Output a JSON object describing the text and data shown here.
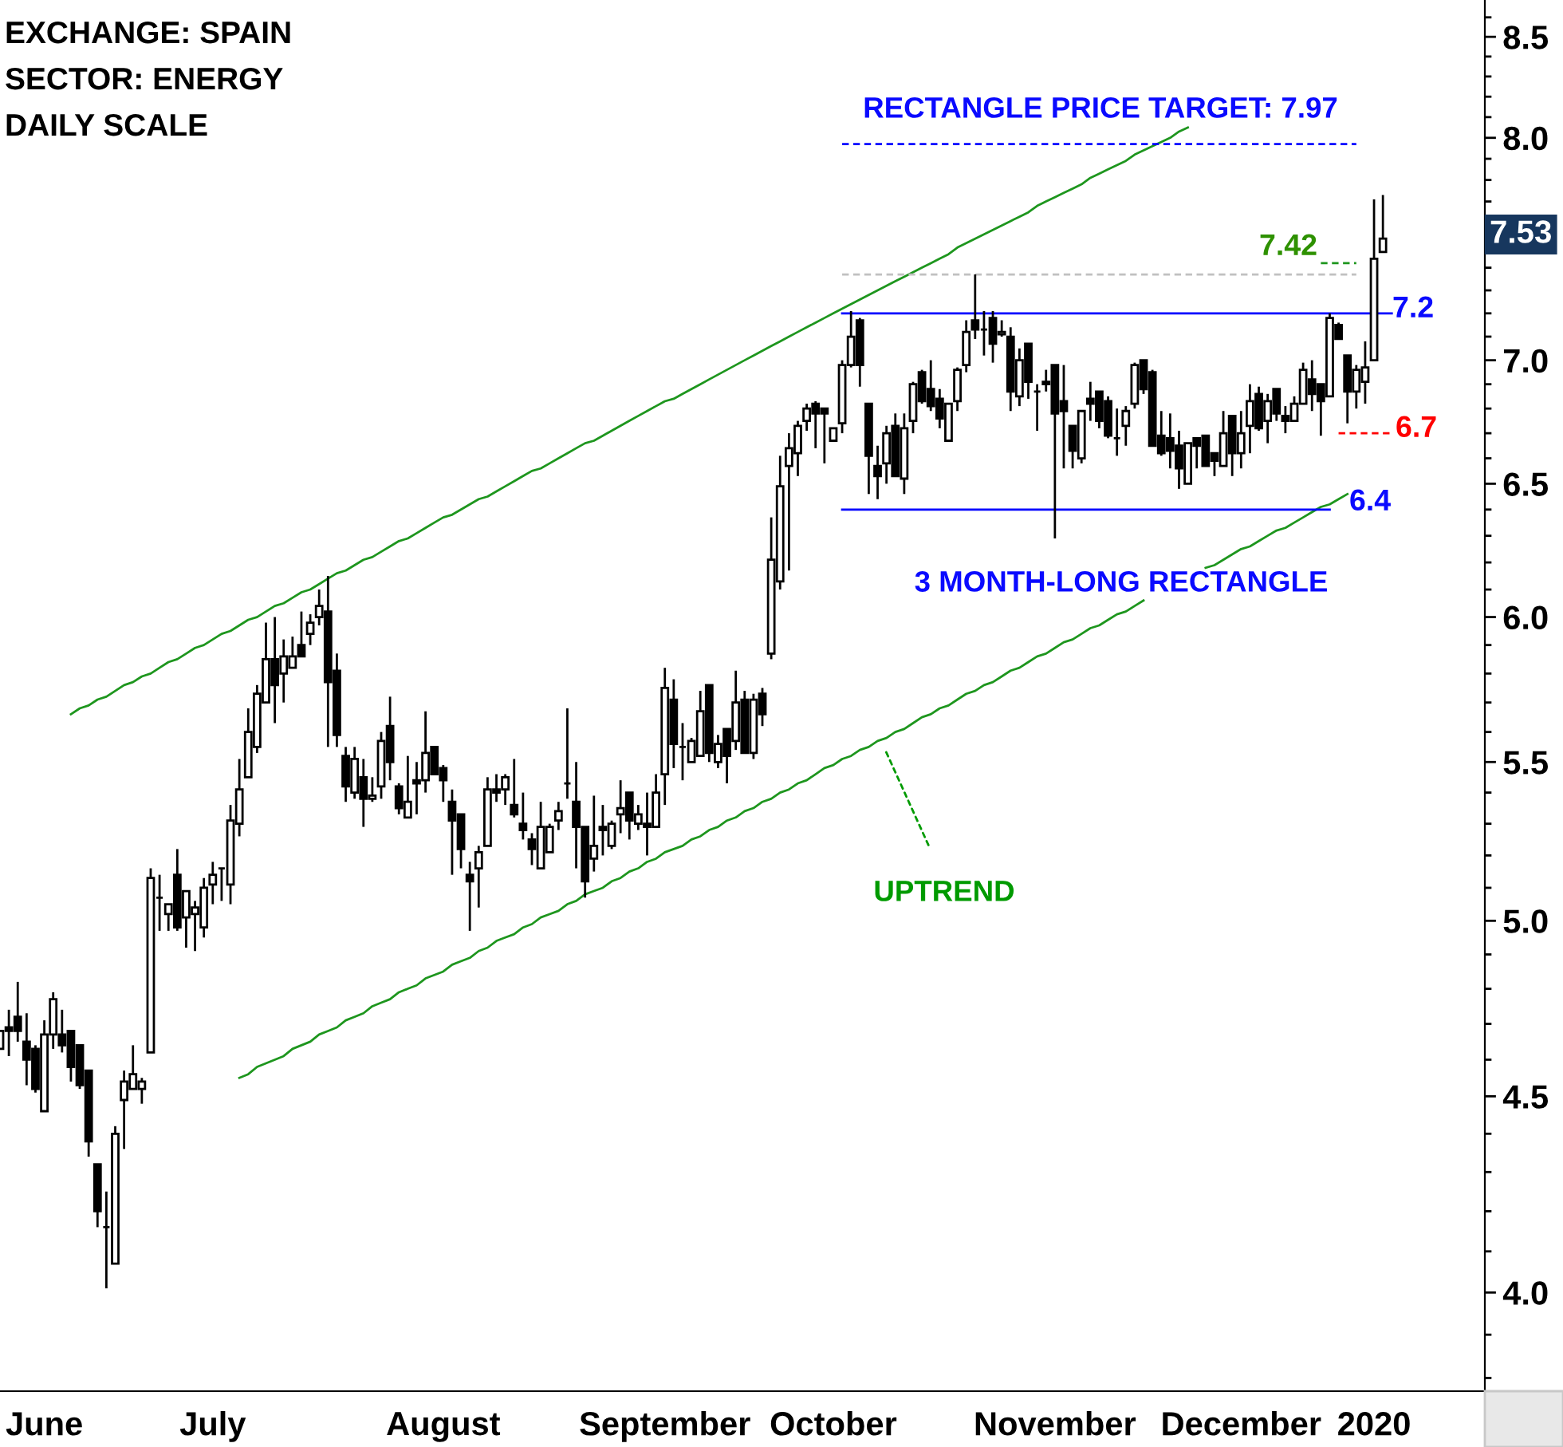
{
  "chart_data": {
    "type": "candlestick",
    "categories": [
      null,
      null,
      null,
      null,
      null,
      "June",
      null,
      null,
      null,
      null,
      null,
      null,
      null,
      null,
      null,
      null,
      null,
      null,
      null,
      null,
      null,
      null,
      null,
      null,
      "July",
      null,
      null,
      null,
      null,
      null,
      null,
      null,
      null,
      null,
      null,
      null,
      null,
      null,
      null,
      null,
      null,
      null,
      null,
      null,
      null,
      null,
      null,
      null,
      null,
      null,
      "August",
      null,
      null,
      null,
      null,
      null,
      null,
      null,
      null,
      null,
      null,
      null,
      null,
      null,
      null,
      null,
      null,
      null,
      null,
      null,
      null,
      null,
      null,
      null,
      null,
      "September",
      null,
      null,
      null,
      null,
      null,
      null,
      null,
      null,
      null,
      null,
      null,
      null,
      null,
      null,
      null,
      null,
      null,
      null,
      "October",
      null,
      null,
      null,
      null,
      null,
      null,
      null,
      null,
      null,
      null,
      null,
      null,
      null,
      null,
      null,
      null,
      null,
      null,
      null,
      null,
      null,
      null,
      null,
      null,
      "November",
      null,
      null,
      null,
      null,
      null,
      null,
      null,
      null,
      null,
      null,
      null,
      null,
      null,
      null,
      null,
      null,
      null,
      null,
      null,
      null,
      "December",
      null,
      null,
      null,
      null,
      null,
      null,
      null,
      null,
      null,
      null,
      null,
      null,
      null,
      null,
      "2020",
      null,
      null,
      null,
      null,
      null,
      null,
      null,
      null,
      null,
      null,
      null,
      null
    ],
    "ohlc": [
      [
        4.63,
        4.68,
        4.63,
        4.68
      ],
      [
        4.69,
        4.74,
        4.61,
        4.68
      ],
      [
        4.72,
        4.82,
        4.65,
        4.68
      ],
      [
        4.65,
        4.73,
        4.53,
        4.6
      ],
      [
        4.63,
        4.64,
        4.51,
        4.52
      ],
      [
        4.46,
        4.71,
        4.46,
        4.67
      ],
      [
        4.67,
        4.79,
        4.63,
        4.77
      ],
      [
        4.67,
        4.74,
        4.62,
        4.64
      ],
      [
        4.68,
        4.68,
        4.54,
        4.58
      ],
      [
        4.64,
        4.64,
        4.52,
        4.53
      ],
      [
        4.57,
        4.57,
        4.34,
        4.38
      ],
      [
        4.32,
        4.32,
        4.16,
        4.2
      ],
      [
        4.16,
        4.25,
        4.01,
        4.16
      ],
      [
        4.07,
        4.42,
        4.07,
        4.4
      ],
      [
        4.49,
        4.57,
        4.36,
        4.54
      ],
      [
        4.52,
        4.64,
        4.52,
        4.56
      ],
      [
        4.52,
        4.55,
        4.48,
        4.54
      ],
      [
        4.62,
        5.16,
        4.62,
        5.13
      ],
      [
        5.07,
        5.14,
        4.97,
        5.07
      ],
      [
        5.02,
        5.05,
        4.97,
        5.05
      ],
      [
        5.14,
        5.22,
        4.97,
        4.98
      ],
      [
        5.01,
        5.09,
        4.92,
        5.09
      ],
      [
        5.02,
        5.06,
        4.91,
        5.04
      ],
      [
        4.98,
        5.13,
        4.95,
        5.1
      ],
      [
        5.11,
        5.18,
        5.05,
        5.14
      ],
      [
        5.16,
        5.16,
        5.06,
        5.16
      ],
      [
        5.11,
        5.36,
        5.05,
        5.31
      ],
      [
        5.3,
        5.51,
        5.26,
        5.41
      ],
      [
        5.45,
        5.68,
        5.45,
        5.6
      ],
      [
        5.55,
        5.76,
        5.53,
        5.73
      ],
      [
        5.7,
        5.98,
        5.7,
        5.85
      ],
      [
        5.85,
        6.0,
        5.63,
        5.76
      ],
      [
        5.8,
        5.92,
        5.7,
        5.86
      ],
      [
        5.82,
        5.93,
        5.82,
        5.86
      ],
      [
        5.9,
        6.02,
        5.86,
        5.86
      ],
      [
        5.94,
        6.01,
        5.9,
        5.98
      ],
      [
        6.0,
        6.1,
        5.97,
        6.04
      ],
      [
        6.02,
        6.15,
        5.55,
        5.77
      ],
      [
        5.81,
        5.87,
        5.55,
        5.59
      ],
      [
        5.52,
        5.55,
        5.37,
        5.42
      ],
      [
        5.4,
        5.55,
        5.38,
        5.51
      ],
      [
        5.45,
        5.51,
        5.29,
        5.38
      ],
      [
        5.38,
        5.45,
        5.37,
        5.39
      ],
      [
        5.42,
        5.6,
        5.38,
        5.57
      ],
      [
        5.62,
        5.72,
        5.44,
        5.5
      ],
      [
        5.42,
        5.43,
        5.33,
        5.35
      ],
      [
        5.32,
        5.52,
        5.32,
        5.37
      ],
      [
        5.44,
        5.5,
        5.33,
        5.43
      ],
      [
        5.44,
        5.67,
        5.4,
        5.53
      ],
      [
        5.55,
        5.55,
        5.46,
        5.46
      ],
      [
        5.48,
        5.49,
        5.37,
        5.44
      ],
      [
        5.37,
        5.41,
        5.14,
        5.31
      ],
      [
        5.33,
        5.33,
        5.16,
        5.22
      ],
      [
        5.14,
        5.18,
        4.97,
        5.12
      ],
      [
        5.16,
        5.23,
        5.04,
        5.21
      ],
      [
        5.23,
        5.45,
        5.23,
        5.41
      ],
      [
        5.41,
        5.46,
        5.37,
        5.4
      ],
      [
        5.41,
        5.46,
        5.36,
        5.45
      ],
      [
        5.36,
        5.51,
        5.32,
        5.33
      ],
      [
        5.3,
        5.4,
        5.25,
        5.28
      ],
      [
        5.25,
        5.27,
        5.17,
        5.22
      ],
      [
        5.16,
        5.37,
        5.16,
        5.29
      ],
      [
        5.21,
        5.3,
        5.21,
        5.29
      ],
      [
        5.31,
        5.37,
        5.28,
        5.34
      ],
      [
        5.43,
        5.68,
        5.38,
        5.43
      ],
      [
        5.37,
        5.5,
        5.16,
        5.29
      ],
      [
        5.29,
        5.29,
        5.07,
        5.12
      ],
      [
        5.19,
        5.39,
        5.15,
        5.23
      ],
      [
        5.29,
        5.36,
        5.2,
        5.28
      ],
      [
        5.23,
        5.31,
        5.22,
        5.3
      ],
      [
        5.33,
        5.44,
        5.27,
        5.35
      ],
      [
        5.4,
        5.4,
        5.25,
        5.31
      ],
      [
        5.3,
        5.36,
        5.28,
        5.33
      ],
      [
        5.3,
        5.4,
        5.2,
        5.29
      ],
      [
        5.29,
        5.46,
        5.29,
        5.4
      ],
      [
        5.46,
        5.82,
        5.36,
        5.75
      ],
      [
        5.71,
        5.78,
        5.48,
        5.56
      ],
      [
        5.55,
        5.63,
        5.44,
        5.55
      ],
      [
        5.5,
        5.58,
        5.5,
        5.57
      ],
      [
        5.52,
        5.74,
        5.52,
        5.67
      ],
      [
        5.76,
        5.76,
        5.5,
        5.53
      ],
      [
        5.5,
        5.59,
        5.48,
        5.56
      ],
      [
        5.61,
        5.61,
        5.43,
        5.52
      ],
      [
        5.57,
        5.81,
        5.54,
        5.7
      ],
      [
        5.71,
        5.74,
        5.53,
        5.53
      ],
      [
        5.53,
        5.73,
        5.51,
        5.71
      ],
      [
        5.73,
        5.75,
        5.62,
        5.66
      ],
      [
        5.87,
        6.37,
        5.85,
        6.21
      ],
      [
        6.13,
        6.61,
        6.1,
        6.49
      ],
      [
        6.57,
        6.7,
        6.17,
        6.64
      ],
      [
        6.62,
        6.75,
        6.53,
        6.73
      ],
      [
        6.75,
        6.82,
        6.71,
        6.8
      ],
      [
        6.82,
        6.83,
        6.64,
        6.78
      ],
      [
        6.8,
        6.8,
        6.58,
        6.78
      ],
      [
        6.67,
        6.72,
        6.67,
        6.72
      ],
      [
        6.74,
        7.0,
        6.7,
        6.98
      ],
      [
        6.98,
        7.21,
        6.97,
        7.1
      ],
      [
        7.17,
        7.18,
        6.89,
        6.98
      ],
      [
        6.82,
        6.82,
        6.46,
        6.61
      ],
      [
        6.57,
        6.65,
        6.44,
        6.53
      ],
      [
        6.58,
        6.73,
        6.5,
        6.7
      ],
      [
        6.73,
        6.78,
        6.53,
        6.53
      ],
      [
        6.52,
        6.78,
        6.46,
        6.72
      ],
      [
        6.75,
        6.91,
        6.7,
        6.9
      ],
      [
        6.95,
        6.96,
        6.82,
        6.83
      ],
      [
        6.88,
        7.0,
        6.79,
        6.81
      ],
      [
        6.84,
        6.88,
        6.72,
        6.76
      ],
      [
        6.67,
        6.82,
        6.67,
        6.82
      ],
      [
        6.83,
        6.97,
        6.79,
        6.96
      ],
      [
        6.98,
        7.17,
        6.95,
        7.12
      ],
      [
        7.17,
        7.37,
        7.09,
        7.13
      ],
      [
        7.13,
        7.21,
        7.02,
        7.13
      ],
      [
        7.18,
        7.21,
        6.99,
        7.07
      ],
      [
        7.11,
        7.17,
        7.1,
        7.12
      ],
      [
        7.1,
        7.14,
        6.79,
        6.87
      ],
      [
        6.85,
        7.05,
        6.81,
        7.0
      ],
      [
        7.07,
        7.07,
        6.84,
        6.91
      ],
      [
        6.87,
        6.9,
        6.71,
        6.87
      ],
      [
        6.91,
        6.96,
        6.87,
        6.9
      ],
      [
        6.98,
        6.98,
        6.29,
        6.78
      ],
      [
        6.83,
        6.98,
        6.56,
        6.79
      ],
      [
        6.73,
        6.73,
        6.56,
        6.63
      ],
      [
        6.6,
        6.79,
        6.58,
        6.79
      ],
      [
        6.84,
        6.91,
        6.75,
        6.82
      ],
      [
        6.87,
        6.87,
        6.72,
        6.75
      ],
      [
        6.83,
        6.85,
        6.68,
        6.69
      ],
      [
        6.68,
        6.8,
        6.61,
        6.68
      ],
      [
        6.73,
        6.81,
        6.65,
        6.79
      ],
      [
        6.82,
        6.99,
        6.8,
        6.98
      ],
      [
        7.0,
        7.0,
        6.86,
        6.88
      ],
      [
        6.95,
        6.96,
        6.65,
        6.65
      ],
      [
        6.69,
        6.79,
        6.61,
        6.62
      ],
      [
        6.68,
        6.78,
        6.56,
        6.63
      ],
      [
        6.65,
        6.71,
        6.48,
        6.56
      ],
      [
        6.5,
        6.66,
        6.5,
        6.66
      ],
      [
        6.68,
        6.68,
        6.56,
        6.65
      ],
      [
        6.69,
        6.69,
        6.57,
        6.57
      ],
      [
        6.62,
        6.62,
        6.53,
        6.59
      ],
      [
        6.57,
        6.79,
        6.57,
        6.7
      ],
      [
        6.77,
        6.77,
        6.53,
        6.62
      ],
      [
        6.62,
        6.79,
        6.56,
        6.7
      ],
      [
        6.73,
        6.9,
        6.62,
        6.83
      ],
      [
        6.86,
        6.89,
        6.71,
        6.72
      ],
      [
        6.75,
        6.86,
        6.66,
        6.83
      ],
      [
        6.88,
        6.88,
        6.75,
        6.78
      ],
      [
        6.77,
        6.81,
        6.7,
        6.75
      ],
      [
        6.75,
        6.85,
        6.75,
        6.82
      ],
      [
        6.82,
        6.99,
        6.82,
        6.96
      ],
      [
        6.92,
        7.0,
        6.79,
        6.86
      ],
      [
        6.9,
        6.9,
        6.69,
        6.83
      ],
      [
        6.85,
        7.2,
        6.85,
        7.18
      ],
      [
        7.15,
        7.16,
        7.09,
        7.09
      ],
      [
        7.02,
        7.02,
        6.74,
        6.87
      ],
      [
        6.87,
        6.98,
        6.8,
        6.96
      ],
      [
        6.91,
        7.08,
        6.82,
        6.97
      ],
      [
        7.0,
        7.71,
        7.0,
        7.44
      ],
      [
        7.47,
        7.73,
        7.47,
        7.53
      ],
      null,
      null,
      null,
      null,
      null,
      null,
      null,
      null,
      null,
      null,
      null
    ],
    "series": [
      {
        "type": "line",
        "color": "#1e961e",
        "values": [
          null,
          null,
          null,
          null,
          null,
          null,
          null,
          null,
          5.66,
          5.68,
          5.69,
          5.71,
          5.72,
          5.74,
          5.76,
          5.77,
          5.79,
          5.8,
          5.82,
          5.84,
          5.85,
          5.87,
          5.89,
          5.9,
          5.92,
          5.94,
          5.95,
          5.97,
          5.99,
          6.0,
          6.02,
          6.04,
          6.05,
          6.07,
          6.09,
          6.1,
          6.12,
          6.14,
          6.16,
          6.17,
          6.19,
          6.21,
          6.22,
          6.24,
          6.26,
          6.28,
          6.29,
          6.31,
          6.33,
          6.35,
          6.37,
          6.38,
          6.4,
          6.42,
          6.44,
          6.45,
          6.47,
          6.49,
          6.51,
          6.53,
          6.55,
          6.56,
          6.58,
          6.6,
          6.62,
          6.64,
          6.66,
          6.67,
          6.69,
          6.71,
          6.73,
          6.75,
          6.77,
          6.79,
          6.81,
          6.83,
          6.84,
          6.86,
          6.88,
          6.9,
          6.92,
          6.94,
          6.96,
          6.98,
          7.0,
          7.02,
          7.04,
          7.06,
          7.08,
          7.1,
          7.12,
          7.14,
          7.16,
          7.18,
          7.2,
          7.22,
          7.24,
          7.26,
          7.28,
          7.3,
          7.32,
          7.34,
          7.36,
          7.38,
          7.4,
          7.42,
          7.44,
          7.46,
          7.49,
          7.51,
          7.53,
          7.55,
          7.57,
          7.59,
          7.61,
          7.63,
          7.65,
          7.68,
          7.7,
          7.72,
          7.74,
          7.76,
          7.78,
          7.81,
          7.83,
          7.85,
          7.87,
          7.89,
          7.92,
          7.94,
          7.96,
          7.98,
          8.0,
          8.03,
          8.05,
          null,
          null,
          null,
          null,
          null,
          null,
          null,
          null,
          null,
          null,
          null,
          null,
          null,
          null,
          null,
          null,
          null,
          null,
          null,
          null,
          null,
          null,
          null,
          null,
          null,
          null,
          null,
          null,
          null,
          null,
          null,
          null,
          null
        ]
      },
      {
        "type": "line",
        "color": "#1e961e",
        "values": [
          null,
          null,
          null,
          null,
          null,
          null,
          null,
          null,
          null,
          null,
          null,
          null,
          null,
          null,
          null,
          null,
          null,
          null,
          null,
          null,
          null,
          null,
          null,
          null,
          null,
          null,
          null,
          4.55,
          4.56,
          4.58,
          4.59,
          4.6,
          4.61,
          4.63,
          4.64,
          4.65,
          4.67,
          4.68,
          4.69,
          4.71,
          4.72,
          4.73,
          4.75,
          4.76,
          4.77,
          4.79,
          4.8,
          4.81,
          4.83,
          4.84,
          4.85,
          4.87,
          4.88,
          4.89,
          4.91,
          4.92,
          4.94,
          4.95,
          4.96,
          4.98,
          4.99,
          5.01,
          5.02,
          5.03,
          5.05,
          5.06,
          5.08,
          5.09,
          5.1,
          5.12,
          5.13,
          5.15,
          5.16,
          5.18,
          5.19,
          5.21,
          5.22,
          5.23,
          5.25,
          5.26,
          5.28,
          5.29,
          5.31,
          5.32,
          5.34,
          5.35,
          5.37,
          5.38,
          5.4,
          5.41,
          5.43,
          5.44,
          5.46,
          5.48,
          5.49,
          5.51,
          5.52,
          5.54,
          5.55,
          5.57,
          5.58,
          5.6,
          5.61,
          5.63,
          5.65,
          5.66,
          5.68,
          5.69,
          5.71,
          5.73,
          5.74,
          5.76,
          5.77,
          5.79,
          5.81,
          5.82,
          5.84,
          5.86,
          5.87,
          5.89,
          5.91,
          5.92,
          5.94,
          5.96,
          5.97,
          5.99,
          6.01,
          6.02,
          6.04,
          6.06,
          null,
          null,
          null,
          null,
          null,
          null,
          6.18,
          6.19,
          6.21,
          6.23,
          6.25,
          6.26,
          6.28,
          6.3,
          6.32,
          6.33,
          6.35,
          6.37,
          6.39,
          6.41,
          6.42,
          6.44,
          6.46,
          null,
          null,
          null,
          null,
          null,
          null,
          null,
          null,
          null,
          null,
          null,
          null,
          null,
          null,
          null
        ]
      },
      {
        "type": "line",
        "color": "#0000ff",
        "values": [
          null,
          null,
          null,
          null,
          null,
          null,
          null,
          null,
          null,
          null,
          null,
          null,
          null,
          null,
          null,
          null,
          null,
          null,
          null,
          null,
          null,
          null,
          null,
          null,
          null,
          null,
          null,
          null,
          null,
          null,
          null,
          null,
          null,
          null,
          null,
          null,
          null,
          null,
          null,
          null,
          null,
          null,
          null,
          null,
          null,
          null,
          null,
          null,
          null,
          null,
          null,
          null,
          null,
          null,
          null,
          null,
          null,
          null,
          null,
          null,
          null,
          null,
          null,
          null,
          null,
          null,
          null,
          null,
          null,
          null,
          null,
          null,
          null,
          null,
          null,
          null,
          null,
          null,
          null,
          null,
          null,
          null,
          null,
          null,
          null,
          null,
          null,
          null,
          null,
          null,
          null,
          null,
          null,
          null,
          null,
          7.2,
          7.2,
          7.2,
          7.2,
          7.2,
          7.2,
          7.2,
          7.2,
          7.2,
          7.2,
          7.2,
          7.2,
          7.2,
          7.2,
          7.2,
          7.2,
          7.2,
          7.2,
          7.2,
          7.2,
          7.2,
          7.2,
          7.2,
          7.2,
          7.2,
          7.2,
          7.2,
          7.2,
          7.2,
          7.2,
          7.2,
          7.2,
          7.2,
          7.2,
          7.2,
          7.2,
          7.2,
          7.2,
          7.2,
          7.2,
          7.2,
          7.2,
          7.2,
          7.2,
          7.2,
          7.2,
          7.2,
          7.2,
          7.2,
          7.2,
          7.2,
          7.2,
          7.2,
          7.2,
          7.2,
          7.2,
          7.2,
          7.2,
          7.2,
          7.2,
          7.2,
          7.2,
          7.2,
          null,
          null,
          null,
          null,
          null,
          null,
          null,
          null,
          null,
          null
        ]
      },
      {
        "type": "line",
        "color": "#0000ff",
        "values": [
          null,
          null,
          null,
          null,
          null,
          null,
          null,
          null,
          null,
          null,
          null,
          null,
          null,
          null,
          null,
          null,
          null,
          null,
          null,
          null,
          null,
          null,
          null,
          null,
          null,
          null,
          null,
          null,
          null,
          null,
          null,
          null,
          null,
          null,
          null,
          null,
          null,
          null,
          null,
          null,
          null,
          null,
          null,
          null,
          null,
          null,
          null,
          null,
          null,
          null,
          null,
          null,
          null,
          null,
          null,
          null,
          null,
          null,
          null,
          null,
          null,
          null,
          null,
          null,
          null,
          null,
          null,
          null,
          null,
          null,
          null,
          null,
          null,
          null,
          null,
          null,
          null,
          null,
          null,
          null,
          null,
          null,
          null,
          null,
          null,
          null,
          null,
          null,
          null,
          null,
          null,
          null,
          null,
          null,
          null,
          6.4,
          6.4,
          6.4,
          6.4,
          6.4,
          6.4,
          6.4,
          6.4,
          6.4,
          6.4,
          6.4,
          6.4,
          6.4,
          6.4,
          6.4,
          6.4,
          6.4,
          6.4,
          6.4,
          6.4,
          6.4,
          6.4,
          6.4,
          6.4,
          6.4,
          6.4,
          6.4,
          6.4,
          6.4,
          6.4,
          6.4,
          6.4,
          6.4,
          6.4,
          6.4,
          6.4,
          6.4,
          6.4,
          6.4,
          6.4,
          6.4,
          6.4,
          6.4,
          6.4,
          6.4,
          6.4,
          6.4,
          6.4,
          6.4,
          6.4,
          6.4,
          6.4,
          6.4,
          6.4,
          6.4,
          6.4,
          null,
          null,
          null,
          null,
          null,
          null,
          null,
          null,
          null,
          null,
          null,
          null,
          null,
          null,
          null,
          null,
          null
        ]
      },
      {
        "type": "line",
        "color": "#c0c0c0",
        "line_style": "dashed",
        "values": [
          null,
          null,
          null,
          null,
          null,
          null,
          null,
          null,
          null,
          null,
          null,
          null,
          null,
          null,
          null,
          null,
          null,
          null,
          null,
          null,
          null,
          null,
          null,
          null,
          null,
          null,
          null,
          null,
          null,
          null,
          null,
          null,
          null,
          null,
          null,
          null,
          null,
          null,
          null,
          null,
          null,
          null,
          null,
          null,
          null,
          null,
          null,
          null,
          null,
          null,
          null,
          null,
          null,
          null,
          null,
          null,
          null,
          null,
          null,
          null,
          null,
          null,
          null,
          null,
          null,
          null,
          null,
          null,
          null,
          null,
          null,
          null,
          null,
          null,
          null,
          null,
          null,
          null,
          null,
          null,
          null,
          null,
          null,
          null,
          null,
          null,
          null,
          null,
          null,
          null,
          null,
          null,
          null,
          null,
          null,
          7.37,
          7.37,
          7.37,
          7.37,
          7.37,
          7.37,
          7.37,
          7.37,
          7.37,
          7.37,
          7.37,
          7.37,
          7.37,
          7.37,
          7.37,
          7.37,
          7.37,
          7.37,
          7.37,
          7.37,
          7.37,
          7.37,
          7.37,
          7.37,
          7.37,
          7.37,
          7.37,
          7.37,
          7.37,
          7.37,
          7.37,
          7.37,
          7.37,
          7.37,
          7.37,
          7.37,
          7.37,
          7.37,
          7.37,
          7.37,
          7.37,
          7.37,
          7.37,
          7.37,
          7.37,
          7.37,
          7.37,
          7.37,
          7.37,
          7.37,
          7.37,
          7.37,
          7.37,
          7.37,
          7.37,
          7.37,
          7.37,
          7.37,
          7.37,
          null,
          null,
          null,
          null,
          null,
          null,
          null,
          null,
          null,
          null,
          null,
          null,
          null,
          null
        ]
      },
      {
        "type": "line",
        "color": "#1e961e",
        "line_style": "dashed",
        "values": [
          null,
          null,
          null,
          null,
          null,
          null,
          null,
          null,
          null,
          null,
          null,
          null,
          null,
          null,
          null,
          null,
          null,
          null,
          null,
          null,
          null,
          null,
          null,
          null,
          null,
          null,
          null,
          null,
          null,
          null,
          null,
          null,
          null,
          null,
          null,
          null,
          null,
          null,
          null,
          null,
          null,
          null,
          null,
          null,
          null,
          null,
          null,
          null,
          null,
          null,
          null,
          null,
          null,
          null,
          null,
          null,
          null,
          null,
          null,
          null,
          null,
          null,
          null,
          null,
          null,
          null,
          null,
          null,
          null,
          null,
          null,
          null,
          null,
          null,
          null,
          null,
          null,
          null,
          null,
          null,
          null,
          null,
          null,
          null,
          null,
          null,
          null,
          null,
          null,
          null,
          null,
          null,
          null,
          null,
          null,
          null,
          null,
          null,
          null,
          null,
          null,
          null,
          null,
          null,
          null,
          null,
          null,
          null,
          null,
          null,
          null,
          null,
          null,
          null,
          null,
          null,
          null,
          null,
          null,
          null,
          null,
          null,
          null,
          null,
          null,
          null,
          null,
          null,
          null,
          null,
          null,
          null,
          null,
          null,
          null,
          null,
          null,
          null,
          null,
          null,
          null,
          null,
          null,
          null,
          null,
          null,
          null,
          null,
          null,
          7.42,
          7.42,
          7.42,
          7.42,
          7.42,
          null,
          null,
          null,
          null,
          null,
          null,
          null,
          null,
          null,
          null,
          null,
          null,
          null,
          null
        ]
      },
      {
        "type": "line",
        "color": "#ff0000",
        "line_style": "dashed",
        "values": [
          null,
          null,
          null,
          null,
          null,
          null,
          null,
          null,
          null,
          null,
          null,
          null,
          null,
          null,
          null,
          null,
          null,
          null,
          null,
          null,
          null,
          null,
          null,
          null,
          null,
          null,
          null,
          null,
          null,
          null,
          null,
          null,
          null,
          null,
          null,
          null,
          null,
          null,
          null,
          null,
          null,
          null,
          null,
          null,
          null,
          null,
          null,
          null,
          null,
          null,
          null,
          null,
          null,
          null,
          null,
          null,
          null,
          null,
          null,
          null,
          null,
          null,
          null,
          null,
          null,
          null,
          null,
          null,
          null,
          null,
          null,
          null,
          null,
          null,
          null,
          null,
          null,
          null,
          null,
          null,
          null,
          null,
          null,
          null,
          null,
          null,
          null,
          null,
          null,
          null,
          null,
          null,
          null,
          null,
          null,
          null,
          null,
          null,
          null,
          null,
          null,
          null,
          null,
          null,
          null,
          null,
          null,
          null,
          null,
          null,
          null,
          null,
          null,
          null,
          null,
          null,
          null,
          null,
          null,
          null,
          null,
          null,
          null,
          null,
          null,
          null,
          null,
          null,
          null,
          null,
          null,
          null,
          null,
          null,
          null,
          null,
          null,
          null,
          null,
          null,
          null,
          null,
          null,
          null,
          null,
          null,
          null,
          null,
          null,
          null,
          null,
          6.7,
          6.7,
          6.7,
          6.7,
          6.7,
          6.7,
          6.7,
          null,
          null,
          null,
          null,
          null,
          null,
          null,
          null,
          null,
          null
        ]
      },
      {
        "type": "line",
        "color": "#0000ff",
        "line_style": "dashed",
        "values": [
          null,
          null,
          null,
          null,
          null,
          null,
          null,
          null,
          null,
          null,
          null,
          null,
          null,
          null,
          null,
          null,
          null,
          null,
          null,
          null,
          null,
          null,
          null,
          null,
          null,
          null,
          null,
          null,
          null,
          null,
          null,
          null,
          null,
          null,
          null,
          null,
          null,
          null,
          null,
          null,
          null,
          null,
          null,
          null,
          null,
          null,
          null,
          null,
          null,
          null,
          null,
          null,
          null,
          null,
          null,
          null,
          null,
          null,
          null,
          null,
          null,
          null,
          null,
          null,
          null,
          null,
          null,
          null,
          null,
          null,
          null,
          null,
          null,
          null,
          null,
          null,
          null,
          null,
          null,
          null,
          null,
          null,
          null,
          null,
          null,
          null,
          null,
          null,
          null,
          null,
          null,
          null,
          null,
          null,
          null,
          7.97,
          7.97,
          7.97,
          7.97,
          7.97,
          7.97,
          7.97,
          7.97,
          7.97,
          7.97,
          7.97,
          7.97,
          7.97,
          7.97,
          7.97,
          7.97,
          7.97,
          7.97,
          7.97,
          7.97,
          7.97,
          7.97,
          7.97,
          7.97,
          7.97,
          7.97,
          7.97,
          7.97,
          7.97,
          7.97,
          7.97,
          7.97,
          7.97,
          7.97,
          7.97,
          7.97,
          7.97,
          7.97,
          7.97,
          7.97,
          7.97,
          7.97,
          7.97,
          7.97,
          7.97,
          7.97,
          7.97,
          7.97,
          7.97,
          7.97,
          7.97,
          7.97,
          7.97,
          7.97,
          7.97,
          7.97,
          7.97,
          7.97,
          7.97,
          null,
          null,
          null,
          null,
          null,
          null,
          null,
          null,
          null,
          null,
          null,
          null,
          null,
          null
        ]
      }
    ],
    "log": true,
    "ylim": [
      3.77,
      8.69
    ],
    "yticks": [
      {
        "value": 3.8,
        "label": null
      },
      {
        "value": 3.9,
        "label": null
      },
      {
        "value": 4,
        "label": "4.0"
      },
      {
        "value": 4.1,
        "label": null
      },
      {
        "value": 4.2,
        "label": null
      },
      {
        "value": 4.3,
        "label": null
      },
      {
        "value": 4.4,
        "label": null
      },
      4.5,
      {
        "value": 4.6,
        "label": null
      },
      {
        "value": 4.7,
        "label": null
      },
      {
        "value": 4.8,
        "label": null
      },
      {
        "value": 4.9,
        "label": null
      },
      {
        "value": 5,
        "label": "5.0"
      },
      {
        "value": 5.1,
        "label": null
      },
      {
        "value": 5.2,
        "label": null
      },
      {
        "value": 5.3,
        "label": null
      },
      {
        "value": 5.4,
        "label": null
      },
      5.5,
      {
        "value": 5.6,
        "label": null
      },
      {
        "value": 5.7,
        "label": null
      },
      {
        "value": 5.8,
        "label": null
      },
      {
        "value": 5.9,
        "label": null
      },
      {
        "value": 6,
        "label": "6.0"
      },
      {
        "value": 6.1,
        "label": null
      },
      {
        "value": 6.2,
        "label": null
      },
      {
        "value": 6.3,
        "label": null
      },
      {
        "value": 6.4,
        "label": null
      },
      6.5,
      {
        "value": 6.6,
        "label": null
      },
      {
        "value": 6.7,
        "label": null
      },
      {
        "value": 6.8,
        "label": null
      },
      {
        "value": 6.9,
        "label": null
      },
      {
        "value": 7,
        "label": "7.0"
      },
      {
        "value": 7.1,
        "label": null
      },
      {
        "value": 7.2,
        "label": null
      },
      {
        "value": 7.3,
        "label": null
      },
      {
        "value": 7.4,
        "label": null
      },
      {
        "value": 7.5,
        "label": null
      },
      {
        "value": 7.6,
        "label": null
      },
      {
        "value": 7.7,
        "label": null
      },
      {
        "value": 7.8,
        "label": null
      },
      {
        "value": 7.9,
        "label": null
      },
      {
        "value": 8,
        "label": "8.0"
      },
      {
        "value": 8.1,
        "label": null
      },
      {
        "value": 8.2,
        "label": null
      },
      {
        "value": 8.3,
        "label": null
      },
      {
        "value": 8.4,
        "label": null
      },
      8.5,
      {
        "value": 8.6,
        "label": null
      }
    ],
    "annotations": [
      "EXCHANGE: SPAIN",
      "SECTOR: ENERGY",
      "DAILY SCALE",
      "3 MONTH-LONG RECTANGLE",
      "RECTANGLE PRICE TARGET: 7.97",
      "7.42",
      "7.2",
      "6.7",
      "6.4",
      "UPTREND",
      "7.53"
    ]
  }
}
